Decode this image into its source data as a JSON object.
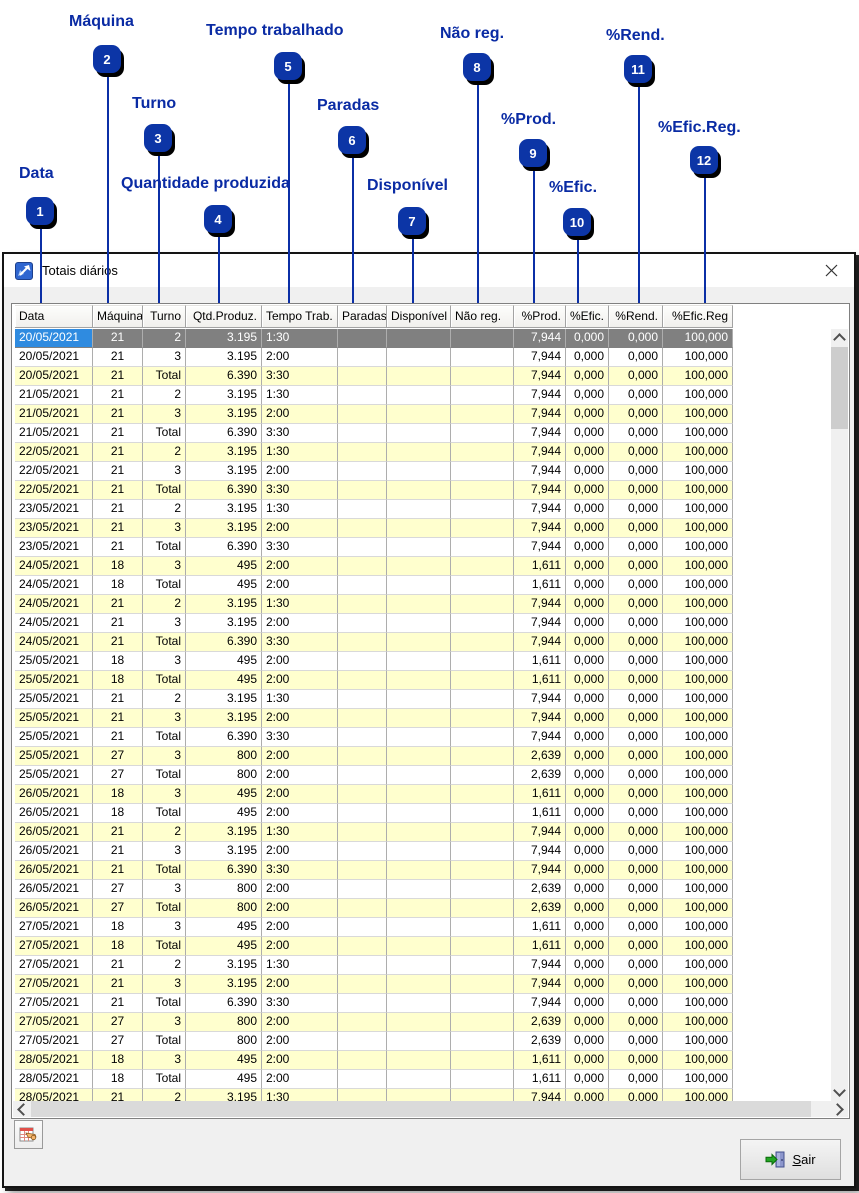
{
  "callouts": [
    {
      "number": "1",
      "label": "Data"
    },
    {
      "number": "2",
      "label": "Máquina"
    },
    {
      "number": "3",
      "label": "Turno"
    },
    {
      "number": "4",
      "label": "Quantidade produzida"
    },
    {
      "number": "5",
      "label": "Tempo trabalhado"
    },
    {
      "number": "6",
      "label": "Paradas"
    },
    {
      "number": "7",
      "label": "Disponível"
    },
    {
      "number": "8",
      "label": "Não reg."
    },
    {
      "number": "9",
      "label": "%Prod."
    },
    {
      "number": "10",
      "label": "%Efic."
    },
    {
      "number": "11",
      "label": "%Rend."
    },
    {
      "number": "12",
      "label": "%Efic.Reg."
    }
  ],
  "window": {
    "title": "Totais diários"
  },
  "table": {
    "columns": [
      "Data",
      "Máquina",
      "Turno",
      "Qtd.Produz.",
      "Tempo Trab.",
      "Paradas",
      "Disponível",
      "Não reg.",
      "%Prod.",
      "%Efic.",
      "%Rend.",
      "%Efic.Reg"
    ],
    "selected_row_index": 0,
    "rows": [
      [
        "20/05/2021",
        "21",
        "2",
        "3.195",
        "1:30",
        "",
        "",
        "",
        "7,944",
        "0,000",
        "0,000",
        "100,000"
      ],
      [
        "20/05/2021",
        "21",
        "3",
        "3.195",
        "2:00",
        "",
        "",
        "",
        "7,944",
        "0,000",
        "0,000",
        "100,000"
      ],
      [
        "20/05/2021",
        "21",
        "Total",
        "6.390",
        "3:30",
        "",
        "",
        "",
        "7,944",
        "0,000",
        "0,000",
        "100,000"
      ],
      [
        "21/05/2021",
        "21",
        "2",
        "3.195",
        "1:30",
        "",
        "",
        "",
        "7,944",
        "0,000",
        "0,000",
        "100,000"
      ],
      [
        "21/05/2021",
        "21",
        "3",
        "3.195",
        "2:00",
        "",
        "",
        "",
        "7,944",
        "0,000",
        "0,000",
        "100,000"
      ],
      [
        "21/05/2021",
        "21",
        "Total",
        "6.390",
        "3:30",
        "",
        "",
        "",
        "7,944",
        "0,000",
        "0,000",
        "100,000"
      ],
      [
        "22/05/2021",
        "21",
        "2",
        "3.195",
        "1:30",
        "",
        "",
        "",
        "7,944",
        "0,000",
        "0,000",
        "100,000"
      ],
      [
        "22/05/2021",
        "21",
        "3",
        "3.195",
        "2:00",
        "",
        "",
        "",
        "7,944",
        "0,000",
        "0,000",
        "100,000"
      ],
      [
        "22/05/2021",
        "21",
        "Total",
        "6.390",
        "3:30",
        "",
        "",
        "",
        "7,944",
        "0,000",
        "0,000",
        "100,000"
      ],
      [
        "23/05/2021",
        "21",
        "2",
        "3.195",
        "1:30",
        "",
        "",
        "",
        "7,944",
        "0,000",
        "0,000",
        "100,000"
      ],
      [
        "23/05/2021",
        "21",
        "3",
        "3.195",
        "2:00",
        "",
        "",
        "",
        "7,944",
        "0,000",
        "0,000",
        "100,000"
      ],
      [
        "23/05/2021",
        "21",
        "Total",
        "6.390",
        "3:30",
        "",
        "",
        "",
        "7,944",
        "0,000",
        "0,000",
        "100,000"
      ],
      [
        "24/05/2021",
        "18",
        "3",
        "495",
        "2:00",
        "",
        "",
        "",
        "1,611",
        "0,000",
        "0,000",
        "100,000"
      ],
      [
        "24/05/2021",
        "18",
        "Total",
        "495",
        "2:00",
        "",
        "",
        "",
        "1,611",
        "0,000",
        "0,000",
        "100,000"
      ],
      [
        "24/05/2021",
        "21",
        "2",
        "3.195",
        "1:30",
        "",
        "",
        "",
        "7,944",
        "0,000",
        "0,000",
        "100,000"
      ],
      [
        "24/05/2021",
        "21",
        "3",
        "3.195",
        "2:00",
        "",
        "",
        "",
        "7,944",
        "0,000",
        "0,000",
        "100,000"
      ],
      [
        "24/05/2021",
        "21",
        "Total",
        "6.390",
        "3:30",
        "",
        "",
        "",
        "7,944",
        "0,000",
        "0,000",
        "100,000"
      ],
      [
        "25/05/2021",
        "18",
        "3",
        "495",
        "2:00",
        "",
        "",
        "",
        "1,611",
        "0,000",
        "0,000",
        "100,000"
      ],
      [
        "25/05/2021",
        "18",
        "Total",
        "495",
        "2:00",
        "",
        "",
        "",
        "1,611",
        "0,000",
        "0,000",
        "100,000"
      ],
      [
        "25/05/2021",
        "21",
        "2",
        "3.195",
        "1:30",
        "",
        "",
        "",
        "7,944",
        "0,000",
        "0,000",
        "100,000"
      ],
      [
        "25/05/2021",
        "21",
        "3",
        "3.195",
        "2:00",
        "",
        "",
        "",
        "7,944",
        "0,000",
        "0,000",
        "100,000"
      ],
      [
        "25/05/2021",
        "21",
        "Total",
        "6.390",
        "3:30",
        "",
        "",
        "",
        "7,944",
        "0,000",
        "0,000",
        "100,000"
      ],
      [
        "25/05/2021",
        "27",
        "3",
        "800",
        "2:00",
        "",
        "",
        "",
        "2,639",
        "0,000",
        "0,000",
        "100,000"
      ],
      [
        "25/05/2021",
        "27",
        "Total",
        "800",
        "2:00",
        "",
        "",
        "",
        "2,639",
        "0,000",
        "0,000",
        "100,000"
      ],
      [
        "26/05/2021",
        "18",
        "3",
        "495",
        "2:00",
        "",
        "",
        "",
        "1,611",
        "0,000",
        "0,000",
        "100,000"
      ],
      [
        "26/05/2021",
        "18",
        "Total",
        "495",
        "2:00",
        "",
        "",
        "",
        "1,611",
        "0,000",
        "0,000",
        "100,000"
      ],
      [
        "26/05/2021",
        "21",
        "2",
        "3.195",
        "1:30",
        "",
        "",
        "",
        "7,944",
        "0,000",
        "0,000",
        "100,000"
      ],
      [
        "26/05/2021",
        "21",
        "3",
        "3.195",
        "2:00",
        "",
        "",
        "",
        "7,944",
        "0,000",
        "0,000",
        "100,000"
      ],
      [
        "26/05/2021",
        "21",
        "Total",
        "6.390",
        "3:30",
        "",
        "",
        "",
        "7,944",
        "0,000",
        "0,000",
        "100,000"
      ],
      [
        "26/05/2021",
        "27",
        "3",
        "800",
        "2:00",
        "",
        "",
        "",
        "2,639",
        "0,000",
        "0,000",
        "100,000"
      ],
      [
        "26/05/2021",
        "27",
        "Total",
        "800",
        "2:00",
        "",
        "",
        "",
        "2,639",
        "0,000",
        "0,000",
        "100,000"
      ],
      [
        "27/05/2021",
        "18",
        "3",
        "495",
        "2:00",
        "",
        "",
        "",
        "1,611",
        "0,000",
        "0,000",
        "100,000"
      ],
      [
        "27/05/2021",
        "18",
        "Total",
        "495",
        "2:00",
        "",
        "",
        "",
        "1,611",
        "0,000",
        "0,000",
        "100,000"
      ],
      [
        "27/05/2021",
        "21",
        "2",
        "3.195",
        "1:30",
        "",
        "",
        "",
        "7,944",
        "0,000",
        "0,000",
        "100,000"
      ],
      [
        "27/05/2021",
        "21",
        "3",
        "3.195",
        "2:00",
        "",
        "",
        "",
        "7,944",
        "0,000",
        "0,000",
        "100,000"
      ],
      [
        "27/05/2021",
        "21",
        "Total",
        "6.390",
        "3:30",
        "",
        "",
        "",
        "7,944",
        "0,000",
        "0,000",
        "100,000"
      ],
      [
        "27/05/2021",
        "27",
        "3",
        "800",
        "2:00",
        "",
        "",
        "",
        "2,639",
        "0,000",
        "0,000",
        "100,000"
      ],
      [
        "27/05/2021",
        "27",
        "Total",
        "800",
        "2:00",
        "",
        "",
        "",
        "2,639",
        "0,000",
        "0,000",
        "100,000"
      ],
      [
        "28/05/2021",
        "18",
        "3",
        "495",
        "2:00",
        "",
        "",
        "",
        "1,611",
        "0,000",
        "0,000",
        "100,000"
      ],
      [
        "28/05/2021",
        "18",
        "Total",
        "495",
        "2:00",
        "",
        "",
        "",
        "1,611",
        "0,000",
        "0,000",
        "100,000"
      ],
      [
        "28/05/2021",
        "21",
        "2",
        "3.195",
        "1:30",
        "",
        "",
        "",
        "7,944",
        "0,000",
        "0,000",
        "100,000"
      ]
    ]
  },
  "footer": {
    "exit_button": {
      "accel": "S",
      "rest": "air"
    }
  }
}
